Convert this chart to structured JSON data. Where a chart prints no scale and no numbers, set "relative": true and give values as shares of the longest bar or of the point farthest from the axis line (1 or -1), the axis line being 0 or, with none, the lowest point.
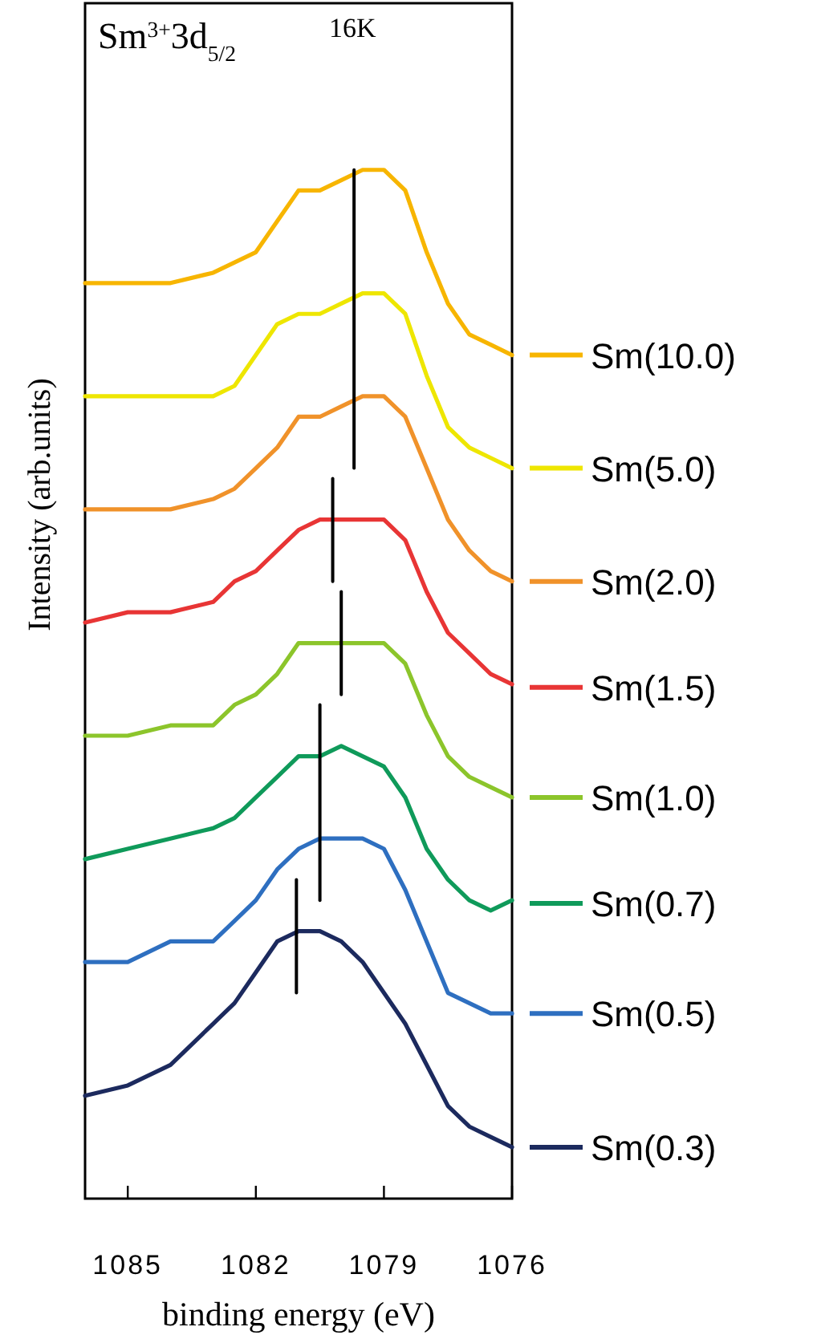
{
  "chart_data": {
    "type": "line",
    "title": "Sm$^{3+}$3d$_{5/2}$",
    "annotations": [
      "16K"
    ],
    "xlabel": "binding energy (eV)",
    "ylabel": "Intensity (arb.units)",
    "relative": true,
    "xlim": [
      1086,
      1076
    ],
    "xticks": [
      1085,
      1082,
      1079,
      1076
    ],
    "grid": false,
    "legend": "right",
    "marker": "none",
    "line_style": "solid",
    "x": [
      1086,
      1085,
      1084,
      1083,
      1082.5,
      1082,
      1081.5,
      1081,
      1080.5,
      1080,
      1079.5,
      1079,
      1078.5,
      1078,
      1077.5,
      1077,
      1076.5,
      1076
    ],
    "series": [
      {
        "name": "Sm(10.0)",
        "color": "#f7b500",
        "values": [
          0.89,
          0.89,
          0.89,
          0.9,
          0.91,
          0.92,
          0.95,
          0.98,
          0.98,
          0.99,
          1.0,
          1.0,
          0.98,
          0.92,
          0.87,
          0.84,
          0.83,
          0.82
        ]
      },
      {
        "name": "Sm(5.0)",
        "color": "#eee600",
        "values": [
          0.78,
          0.78,
          0.78,
          0.78,
          0.79,
          0.82,
          0.85,
          0.86,
          0.86,
          0.87,
          0.88,
          0.88,
          0.86,
          0.8,
          0.75,
          0.73,
          0.72,
          0.71
        ]
      },
      {
        "name": "Sm(2.0)",
        "color": "#f0922a",
        "values": [
          0.67,
          0.67,
          0.67,
          0.68,
          0.69,
          0.71,
          0.73,
          0.76,
          0.76,
          0.77,
          0.78,
          0.78,
          0.76,
          0.71,
          0.66,
          0.63,
          0.61,
          0.6
        ]
      },
      {
        "name": "Sm(1.5)",
        "color": "#e83535",
        "values": [
          0.56,
          0.57,
          0.57,
          0.58,
          0.6,
          0.61,
          0.63,
          0.65,
          0.66,
          0.66,
          0.66,
          0.66,
          0.64,
          0.59,
          0.55,
          0.53,
          0.51,
          0.5
        ]
      },
      {
        "name": "Sm(1.0)",
        "color": "#8cc52b",
        "values": [
          0.45,
          0.45,
          0.46,
          0.46,
          0.48,
          0.49,
          0.51,
          0.54,
          0.54,
          0.54,
          0.54,
          0.54,
          0.52,
          0.47,
          0.43,
          0.41,
          0.4,
          0.39
        ]
      },
      {
        "name": "Sm(0.7)",
        "color": "#0f9a5a",
        "values": [
          0.33,
          0.34,
          0.35,
          0.36,
          0.37,
          0.39,
          0.41,
          0.43,
          0.43,
          0.44,
          0.43,
          0.42,
          0.39,
          0.34,
          0.31,
          0.29,
          0.28,
          0.29
        ]
      },
      {
        "name": "Sm(0.5)",
        "color": "#2e6fc0",
        "values": [
          0.23,
          0.23,
          0.25,
          0.25,
          0.27,
          0.29,
          0.32,
          0.34,
          0.35,
          0.35,
          0.35,
          0.34,
          0.3,
          0.25,
          0.2,
          0.19,
          0.18,
          0.18
        ]
      },
      {
        "name": "Sm(0.3)",
        "color": "#1c2a5e",
        "values": [
          0.1,
          0.11,
          0.13,
          0.17,
          0.19,
          0.22,
          0.25,
          0.26,
          0.26,
          0.25,
          0.23,
          0.2,
          0.17,
          0.13,
          0.09,
          0.07,
          0.06,
          0.05
        ]
      },
      {
        "color": "#000000",
        "x": [
          1079.7,
          1079.7
        ],
        "values": [
          0.71,
          1.0
        ]
      },
      {
        "color": "#000000",
        "x": [
          1080.2,
          1080.2
        ],
        "values": [
          0.6,
          0.7
        ]
      },
      {
        "color": "#000000",
        "x": [
          1080.0,
          1080.0
        ],
        "values": [
          0.49,
          0.59
        ]
      },
      {
        "color": "#000000",
        "x": [
          1080.5,
          1080.5
        ],
        "values": [
          0.29,
          0.48
        ]
      },
      {
        "color": "#000000",
        "x": [
          1081.05,
          1081.05
        ],
        "values": [
          0.2,
          0.31
        ]
      }
    ]
  }
}
